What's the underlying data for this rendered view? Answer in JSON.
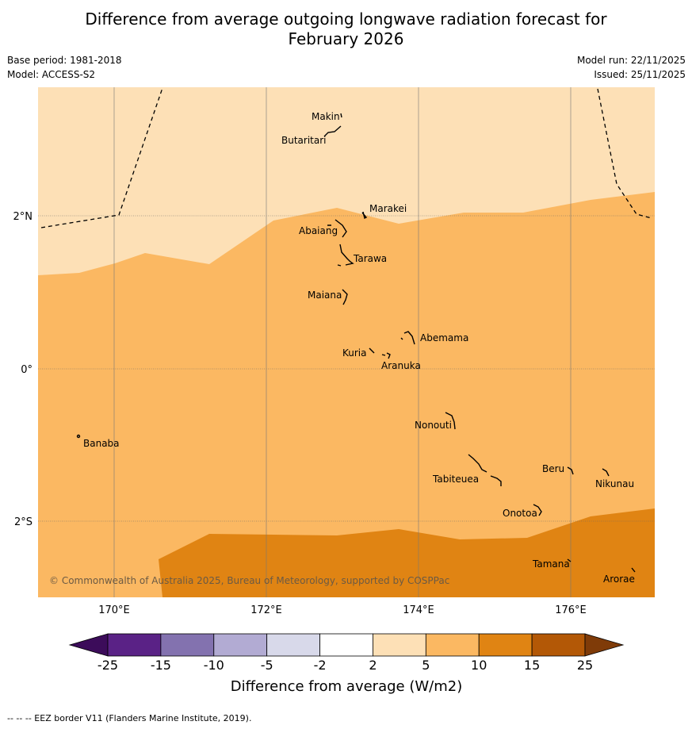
{
  "title_line1": "Difference from average outgoing longwave radiation forecast for",
  "title_line2": "February 2026",
  "meta_left": {
    "base_period": "Base period: 1981-2018",
    "model": "Model: ACCESS-S2"
  },
  "meta_right": {
    "model_run": "Model run: 22/11/2025",
    "issued": "Issued: 25/11/2025"
  },
  "map": {
    "lon_ticks": [
      "170°E",
      "172°E",
      "174°E",
      "176°E"
    ],
    "lat_ticks": [
      "2°N",
      "0°",
      "2°S"
    ],
    "copyright": "© Commonwealth of Australia 2025, Bureau of Meteorology, supported by COSPPac",
    "places": [
      {
        "name": "Makin"
      },
      {
        "name": "Butaritari"
      },
      {
        "name": "Marakei"
      },
      {
        "name": "Abaiang"
      },
      {
        "name": "Tarawa"
      },
      {
        "name": "Maiana"
      },
      {
        "name": "Abemama"
      },
      {
        "name": "Kuria"
      },
      {
        "name": "Aranuka"
      },
      {
        "name": "Nonouti"
      },
      {
        "name": "Banaba"
      },
      {
        "name": "Beru"
      },
      {
        "name": "Nikunau"
      },
      {
        "name": "Tabiteuea"
      },
      {
        "name": "Onotoa"
      },
      {
        "name": "Tamana"
      },
      {
        "name": "Arorae"
      }
    ],
    "colors": {
      "cat_2_5": "#fde0b6",
      "cat_5_10": "#fbb862",
      "cat_10_15": "#e08413"
    }
  },
  "colorbar": {
    "title": "Difference from average (W/m2)",
    "ticks": [
      "-25",
      "-15",
      "-10",
      "-5",
      "-2",
      "2",
      "5",
      "10",
      "15",
      "25"
    ],
    "colors": [
      "#5a2286",
      "#8372af",
      "#b2abd3",
      "#d8d9ea",
      "#ffffff",
      "#fde0b6",
      "#fbb862",
      "#e08413",
      "#b35806"
    ],
    "under_color": "#3c0c5a",
    "over_color": "#7f3b08"
  },
  "footer": "--  --  -- EEZ border V11 (Flanders Marine Institute, 2019)."
}
